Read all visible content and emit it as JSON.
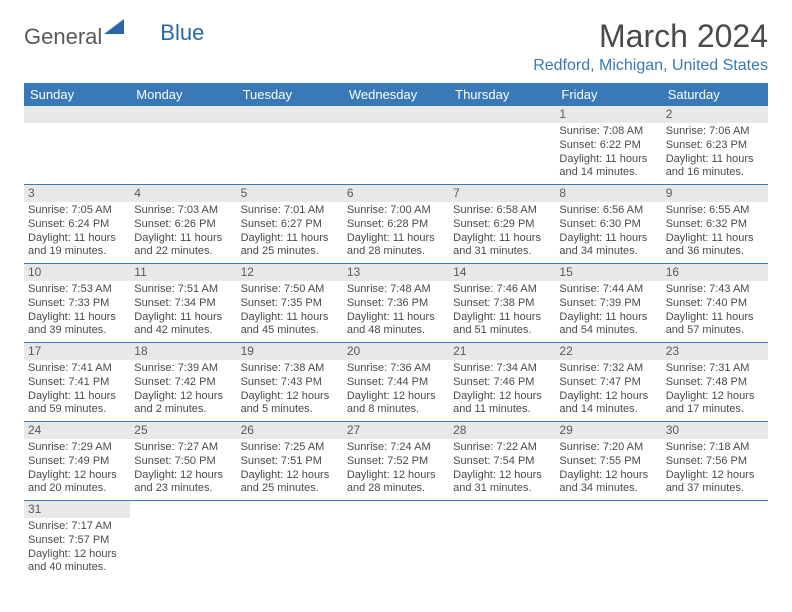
{
  "logo": {
    "text1": "General",
    "text2": "Blue"
  },
  "title": "March 2024",
  "location": "Redford, Michigan, United States",
  "dayHeaders": [
    "Sunday",
    "Monday",
    "Tuesday",
    "Wednesday",
    "Thursday",
    "Friday",
    "Saturday"
  ],
  "colors": {
    "headerBg": "#3a79b7",
    "headerText": "#ffffff",
    "dayNumBg": "#e8e8e8",
    "border": "#3a79b7",
    "logoBlue": "#2968a8"
  },
  "weeks": [
    [
      null,
      null,
      null,
      null,
      null,
      {
        "n": "1",
        "sr": "Sunrise: 7:08 AM",
        "ss": "Sunset: 6:22 PM",
        "dl1": "Daylight: 11 hours",
        "dl2": "and 14 minutes."
      },
      {
        "n": "2",
        "sr": "Sunrise: 7:06 AM",
        "ss": "Sunset: 6:23 PM",
        "dl1": "Daylight: 11 hours",
        "dl2": "and 16 minutes."
      }
    ],
    [
      {
        "n": "3",
        "sr": "Sunrise: 7:05 AM",
        "ss": "Sunset: 6:24 PM",
        "dl1": "Daylight: 11 hours",
        "dl2": "and 19 minutes."
      },
      {
        "n": "4",
        "sr": "Sunrise: 7:03 AM",
        "ss": "Sunset: 6:26 PM",
        "dl1": "Daylight: 11 hours",
        "dl2": "and 22 minutes."
      },
      {
        "n": "5",
        "sr": "Sunrise: 7:01 AM",
        "ss": "Sunset: 6:27 PM",
        "dl1": "Daylight: 11 hours",
        "dl2": "and 25 minutes."
      },
      {
        "n": "6",
        "sr": "Sunrise: 7:00 AM",
        "ss": "Sunset: 6:28 PM",
        "dl1": "Daylight: 11 hours",
        "dl2": "and 28 minutes."
      },
      {
        "n": "7",
        "sr": "Sunrise: 6:58 AM",
        "ss": "Sunset: 6:29 PM",
        "dl1": "Daylight: 11 hours",
        "dl2": "and 31 minutes."
      },
      {
        "n": "8",
        "sr": "Sunrise: 6:56 AM",
        "ss": "Sunset: 6:30 PM",
        "dl1": "Daylight: 11 hours",
        "dl2": "and 34 minutes."
      },
      {
        "n": "9",
        "sr": "Sunrise: 6:55 AM",
        "ss": "Sunset: 6:32 PM",
        "dl1": "Daylight: 11 hours",
        "dl2": "and 36 minutes."
      }
    ],
    [
      {
        "n": "10",
        "sr": "Sunrise: 7:53 AM",
        "ss": "Sunset: 7:33 PM",
        "dl1": "Daylight: 11 hours",
        "dl2": "and 39 minutes."
      },
      {
        "n": "11",
        "sr": "Sunrise: 7:51 AM",
        "ss": "Sunset: 7:34 PM",
        "dl1": "Daylight: 11 hours",
        "dl2": "and 42 minutes."
      },
      {
        "n": "12",
        "sr": "Sunrise: 7:50 AM",
        "ss": "Sunset: 7:35 PM",
        "dl1": "Daylight: 11 hours",
        "dl2": "and 45 minutes."
      },
      {
        "n": "13",
        "sr": "Sunrise: 7:48 AM",
        "ss": "Sunset: 7:36 PM",
        "dl1": "Daylight: 11 hours",
        "dl2": "and 48 minutes."
      },
      {
        "n": "14",
        "sr": "Sunrise: 7:46 AM",
        "ss": "Sunset: 7:38 PM",
        "dl1": "Daylight: 11 hours",
        "dl2": "and 51 minutes."
      },
      {
        "n": "15",
        "sr": "Sunrise: 7:44 AM",
        "ss": "Sunset: 7:39 PM",
        "dl1": "Daylight: 11 hours",
        "dl2": "and 54 minutes."
      },
      {
        "n": "16",
        "sr": "Sunrise: 7:43 AM",
        "ss": "Sunset: 7:40 PM",
        "dl1": "Daylight: 11 hours",
        "dl2": "and 57 minutes."
      }
    ],
    [
      {
        "n": "17",
        "sr": "Sunrise: 7:41 AM",
        "ss": "Sunset: 7:41 PM",
        "dl1": "Daylight: 11 hours",
        "dl2": "and 59 minutes."
      },
      {
        "n": "18",
        "sr": "Sunrise: 7:39 AM",
        "ss": "Sunset: 7:42 PM",
        "dl1": "Daylight: 12 hours",
        "dl2": "and 2 minutes."
      },
      {
        "n": "19",
        "sr": "Sunrise: 7:38 AM",
        "ss": "Sunset: 7:43 PM",
        "dl1": "Daylight: 12 hours",
        "dl2": "and 5 minutes."
      },
      {
        "n": "20",
        "sr": "Sunrise: 7:36 AM",
        "ss": "Sunset: 7:44 PM",
        "dl1": "Daylight: 12 hours",
        "dl2": "and 8 minutes."
      },
      {
        "n": "21",
        "sr": "Sunrise: 7:34 AM",
        "ss": "Sunset: 7:46 PM",
        "dl1": "Daylight: 12 hours",
        "dl2": "and 11 minutes."
      },
      {
        "n": "22",
        "sr": "Sunrise: 7:32 AM",
        "ss": "Sunset: 7:47 PM",
        "dl1": "Daylight: 12 hours",
        "dl2": "and 14 minutes."
      },
      {
        "n": "23",
        "sr": "Sunrise: 7:31 AM",
        "ss": "Sunset: 7:48 PM",
        "dl1": "Daylight: 12 hours",
        "dl2": "and 17 minutes."
      }
    ],
    [
      {
        "n": "24",
        "sr": "Sunrise: 7:29 AM",
        "ss": "Sunset: 7:49 PM",
        "dl1": "Daylight: 12 hours",
        "dl2": "and 20 minutes."
      },
      {
        "n": "25",
        "sr": "Sunrise: 7:27 AM",
        "ss": "Sunset: 7:50 PM",
        "dl1": "Daylight: 12 hours",
        "dl2": "and 23 minutes."
      },
      {
        "n": "26",
        "sr": "Sunrise: 7:25 AM",
        "ss": "Sunset: 7:51 PM",
        "dl1": "Daylight: 12 hours",
        "dl2": "and 25 minutes."
      },
      {
        "n": "27",
        "sr": "Sunrise: 7:24 AM",
        "ss": "Sunset: 7:52 PM",
        "dl1": "Daylight: 12 hours",
        "dl2": "and 28 minutes."
      },
      {
        "n": "28",
        "sr": "Sunrise: 7:22 AM",
        "ss": "Sunset: 7:54 PM",
        "dl1": "Daylight: 12 hours",
        "dl2": "and 31 minutes."
      },
      {
        "n": "29",
        "sr": "Sunrise: 7:20 AM",
        "ss": "Sunset: 7:55 PM",
        "dl1": "Daylight: 12 hours",
        "dl2": "and 34 minutes."
      },
      {
        "n": "30",
        "sr": "Sunrise: 7:18 AM",
        "ss": "Sunset: 7:56 PM",
        "dl1": "Daylight: 12 hours",
        "dl2": "and 37 minutes."
      }
    ],
    [
      {
        "n": "31",
        "sr": "Sunrise: 7:17 AM",
        "ss": "Sunset: 7:57 PM",
        "dl1": "Daylight: 12 hours",
        "dl2": "and 40 minutes."
      },
      null,
      null,
      null,
      null,
      null,
      null
    ]
  ]
}
